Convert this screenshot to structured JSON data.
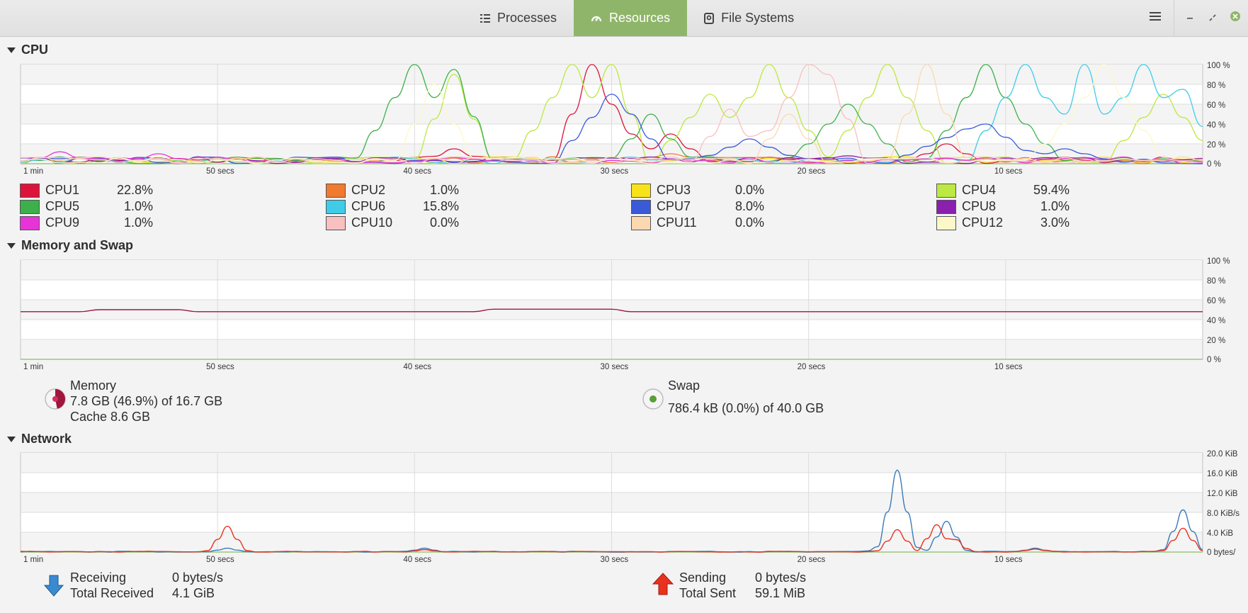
{
  "tabs": [
    {
      "label": "Processes",
      "icon": "list-icon",
      "active": false
    },
    {
      "label": "Resources",
      "icon": "gauge-icon",
      "active": true
    },
    {
      "label": "File Systems",
      "icon": "disk-icon",
      "active": false
    }
  ],
  "colors": {
    "accent": "#8fb56a"
  },
  "cpu": {
    "title": "CPU",
    "time_labels": [
      "1 min",
      "50 secs",
      "40 secs",
      "30 secs",
      "20 secs",
      "10 secs"
    ],
    "y_labels": [
      "100 %",
      "80 %",
      "60 %",
      "40 %",
      "20 %",
      "0 %"
    ],
    "cores": [
      {
        "name": "CPU1",
        "value": "22.8%",
        "color": "#dc143c"
      },
      {
        "name": "CPU2",
        "value": "1.0%",
        "color": "#f07a30"
      },
      {
        "name": "CPU3",
        "value": "0.0%",
        "color": "#f8e21a"
      },
      {
        "name": "CPU4",
        "value": "59.4%",
        "color": "#bce842"
      },
      {
        "name": "CPU5",
        "value": "1.0%",
        "color": "#3cb04a"
      },
      {
        "name": "CPU6",
        "value": "15.8%",
        "color": "#40cce8"
      },
      {
        "name": "CPU7",
        "value": "8.0%",
        "color": "#3a5ad8"
      },
      {
        "name": "CPU8",
        "value": "1.0%",
        "color": "#8a1fb0"
      },
      {
        "name": "CPU9",
        "value": "1.0%",
        "color": "#e634d8"
      },
      {
        "name": "CPU10",
        "value": "0.0%",
        "color": "#f8c0c0"
      },
      {
        "name": "CPU11",
        "value": "0.0%",
        "color": "#fcd8b0"
      },
      {
        "name": "CPU12",
        "value": "3.0%",
        "color": "#fdf8c8"
      }
    ]
  },
  "memory": {
    "title": "Memory and Swap",
    "time_labels": [
      "1 min",
      "50 secs",
      "40 secs",
      "30 secs",
      "20 secs",
      "10 secs"
    ],
    "y_labels": [
      "100 %",
      "80 %",
      "60 %",
      "40 %",
      "20 %",
      "0 %"
    ],
    "memory_label": "Memory",
    "memory_usage": "7.8 GB (46.9%) of 16.7 GB",
    "cache": "Cache 8.6 GB",
    "memory_fraction": 0.469,
    "swap_label": "Swap",
    "swap_usage": "786.4 kB (0.0%) of 40.0 GB",
    "line_color": "#a0163e"
  },
  "network": {
    "title": "Network",
    "time_labels": [
      "1 min",
      "50 secs",
      "40 secs",
      "30 secs",
      "20 secs",
      "10 secs"
    ],
    "y_labels": [
      "20.0 KiB",
      "16.0 KiB",
      "12.0 KiB",
      "8.0 KiB/s",
      "4.0 KiB",
      "0 bytes/"
    ],
    "receiving_label": "Receiving",
    "receiving_value": "0 bytes/s",
    "total_received_label": "Total Received",
    "total_received_value": "4.1 GiB",
    "sending_label": "Sending",
    "sending_value": "0 bytes/s",
    "total_sent_label": "Total Sent",
    "total_sent_value": "59.1 MiB",
    "receive_color": "#3a7ab8",
    "send_color": "#e8321e"
  }
}
